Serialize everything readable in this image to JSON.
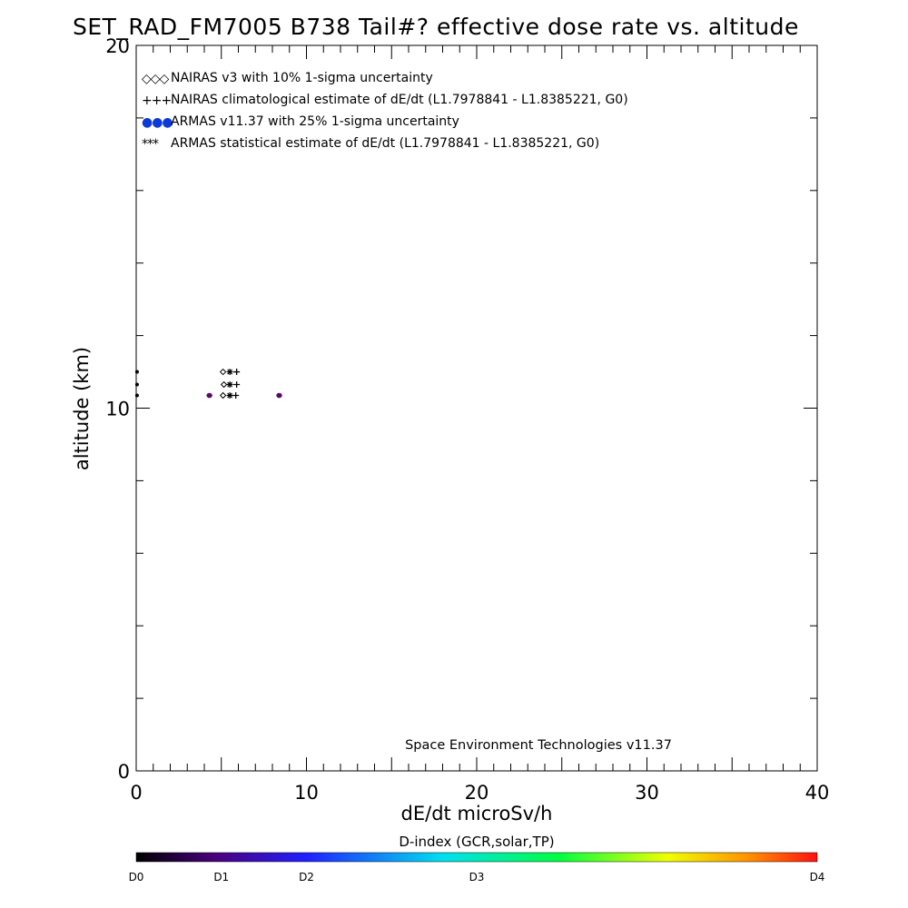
{
  "colors": {
    "axis": "#000000",
    "background": "#ffffff",
    "armas_marker": "#5a0a66",
    "armas_legend": "#0b3ad8"
  },
  "chart_data": {
    "type": "scatter",
    "title": "SET_RAD_FM7005  B738 Tail#? effective dose rate vs. altitude",
    "xlabel": "dE/dt microSv/h",
    "ylabel": "altitude (km)",
    "xlim": [
      0,
      40
    ],
    "ylim": [
      0,
      20
    ],
    "x_ticks": [
      0,
      10,
      20,
      30,
      40
    ],
    "y_ticks": [
      0,
      10,
      20
    ],
    "grid": false,
    "legend_position": "top-left",
    "credit": "Space Environment Technologies v11.37",
    "legend": [
      {
        "symbol": "◇◇◇",
        "label": "NAIRAS v3 with 10% 1-sigma uncertainty"
      },
      {
        "symbol": "+++",
        "label": "NAIRAS climatological estimate of dE/dt (L1.7978841 - L1.8385221, G0)"
      },
      {
        "symbol": "●●●",
        "label": "ARMAS v11.37 with 25% 1-sigma uncertainty"
      },
      {
        "symbol": "***",
        "label": "ARMAS statistical estimate of dE/dt (L1.7978841 - L1.8385221, G0)"
      }
    ],
    "series": [
      {
        "name": "NAIRAS v3 with 10% 1-sigma uncertainty",
        "marker": "diamond",
        "points": [
          [
            5.1,
            11.0
          ],
          [
            5.15,
            10.65
          ],
          [
            5.1,
            10.35
          ],
          [
            0.05,
            11.0
          ],
          [
            0.05,
            10.65
          ],
          [
            0.05,
            10.35
          ]
        ]
      },
      {
        "name": "NAIRAS climatological estimate of dE/dt (L1.7978841 - L1.8385221, G0)",
        "marker": "plus",
        "points": [
          [
            5.9,
            11.0
          ],
          [
            5.9,
            10.65
          ],
          [
            5.85,
            10.35
          ]
        ]
      },
      {
        "name": "ARMAS v11.37 with 25% 1-sigma uncertainty",
        "marker": "dot",
        "points": [
          [
            4.3,
            10.35
          ],
          [
            8.4,
            10.35
          ]
        ]
      },
      {
        "name": "ARMAS statistical estimate of dE/dt (L1.7978841 - L1.8385221, G0)",
        "marker": "asterisk",
        "points": [
          [
            5.5,
            11.0
          ],
          [
            5.5,
            10.65
          ],
          [
            5.5,
            10.35
          ]
        ]
      }
    ],
    "colorbar": {
      "title": "D-index (GCR,solar,TP)",
      "labels": [
        {
          "text": "D0",
          "value": 0
        },
        {
          "text": "D1",
          "value": 5
        },
        {
          "text": "D2",
          "value": 10
        },
        {
          "text": "D3",
          "value": 20
        },
        {
          "text": "D4",
          "value": 40
        }
      ],
      "colors": [
        "#000000",
        "#6a00a8",
        "#1e2cff",
        "#00c8ff",
        "#00ff66",
        "#ffff00",
        "#ff9a00",
        "#ff1a00"
      ]
    }
  }
}
